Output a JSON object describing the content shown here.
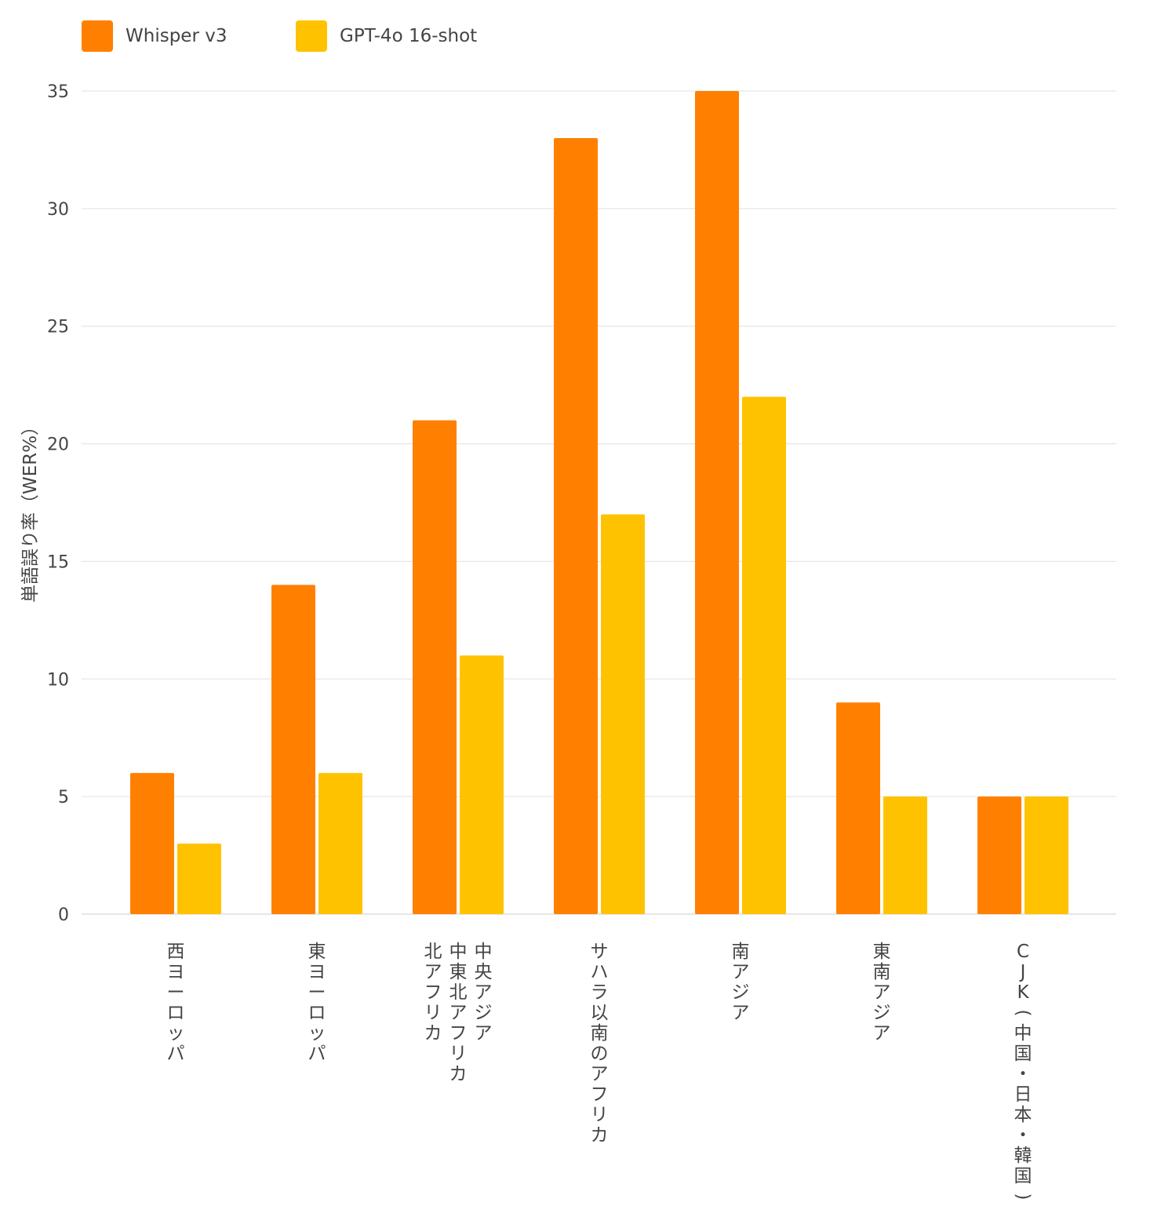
{
  "chart_data": {
    "type": "bar",
    "title": "",
    "xlabel": "",
    "ylabel": "単語誤り率（WER%）",
    "ylim": [
      0,
      35
    ],
    "yticks": [
      0,
      5,
      10,
      15,
      20,
      25,
      30,
      35
    ],
    "grid": true,
    "legend_position": "top-left",
    "categories": [
      [
        "西ヨーロッパ"
      ],
      [
        "東ヨーロッパ"
      ],
      [
        "中央アジア",
        "中東北アフリカ",
        "北アフリカ"
      ],
      [
        "サハラ以南のアフリカ"
      ],
      [
        "南アジア"
      ],
      [
        "東南アジア"
      ],
      [
        "CJK（中国・日本・韓国）"
      ]
    ],
    "series": [
      {
        "name": "Whisper v3",
        "color": "#FF8000",
        "values": [
          6,
          14,
          21,
          33,
          35,
          9,
          5
        ]
      },
      {
        "name": "GPT-4o 16-shot",
        "color": "#FFC200",
        "values": [
          3,
          6,
          11,
          17,
          22,
          5,
          5
        ]
      }
    ]
  }
}
